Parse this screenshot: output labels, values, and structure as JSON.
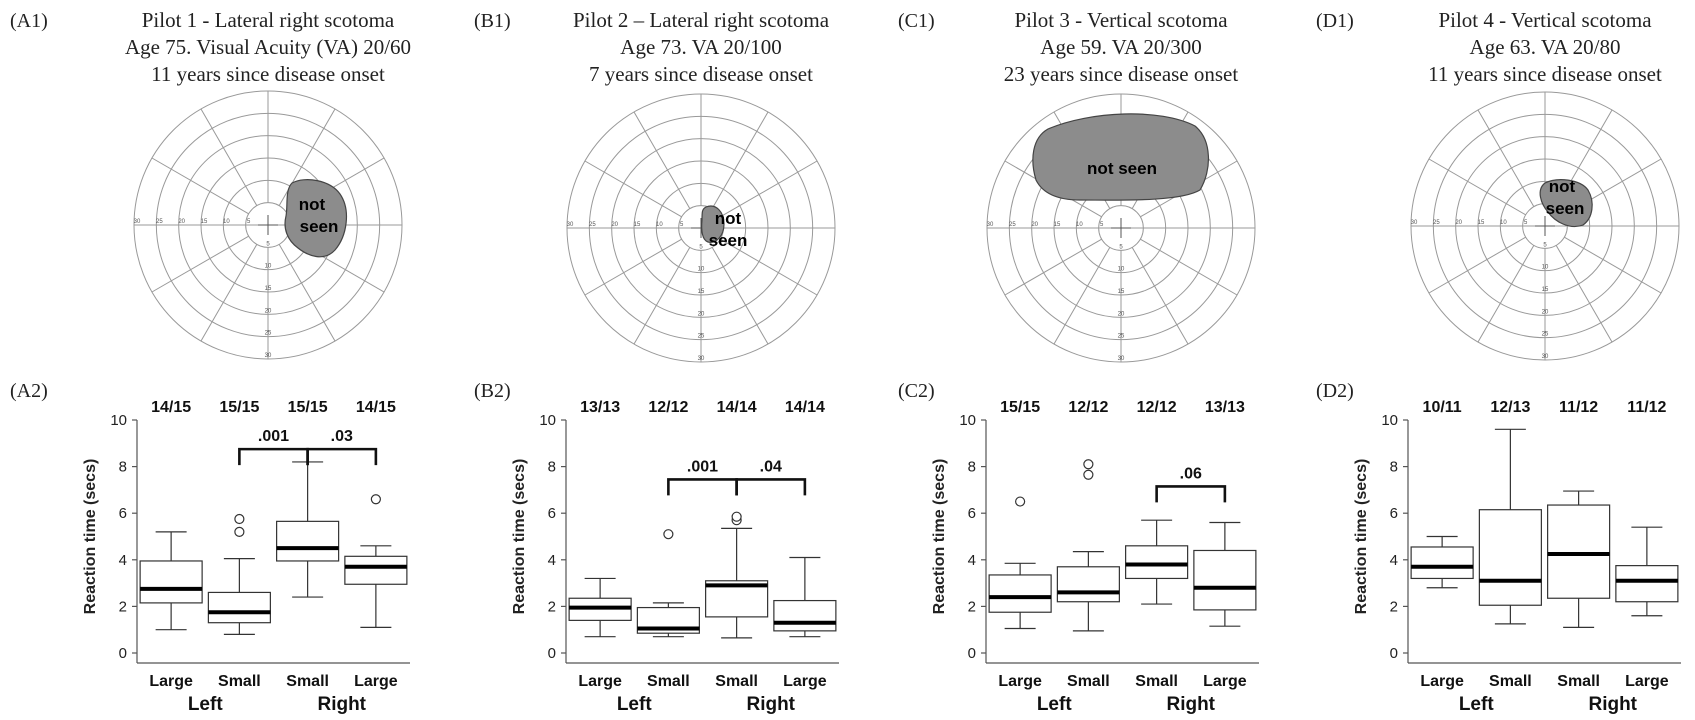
{
  "panel_labels_top": [
    "(A1)",
    "(B1)",
    "(C1)",
    "(D1)"
  ],
  "panel_labels_bottom": [
    "(A2)",
    "(B2)",
    "(C2)",
    "(D2)"
  ],
  "pilots": [
    {
      "title": "Pilot 1 - Lateral right scotoma",
      "line2": "Age 75. Visual Acuity (VA) 20/60",
      "line3": "11 years since disease onset",
      "scotoma_label": [
        "not",
        "seen"
      ]
    },
    {
      "title": "Pilot 2 – Lateral right scotoma",
      "line2": "Age 73. VA 20/100",
      "line3": "7 years since disease onset",
      "scotoma_label": [
        "not",
        "seen"
      ]
    },
    {
      "title": "Pilot 3 - Vertical scotoma",
      "line2": "Age 59. VA 20/300",
      "line3": "23 years since disease onset",
      "scotoma_label": [
        "not seen"
      ]
    },
    {
      "title": "Pilot 4 - Vertical scotoma",
      "line2": "Age 63. VA 20/80",
      "line3": "11 years since disease onset",
      "scotoma_label": [
        "not",
        "seen"
      ]
    }
  ],
  "polar_tick_labels": [
    "5",
    "10",
    "15",
    "20",
    "25",
    "30"
  ],
  "chart_data": [
    {
      "type": "box",
      "ylabel": "Reaction time (secs)",
      "ylim": [
        0,
        10
      ],
      "yticks": [
        0,
        2,
        4,
        6,
        8,
        10
      ],
      "categories": [
        "Large",
        "Small",
        "Small",
        "Large"
      ],
      "groups": [
        "Left",
        "Right"
      ],
      "counts": [
        "14/15",
        "15/15",
        "15/15",
        "14/15"
      ],
      "boxes": [
        {
          "min": 1.0,
          "q1": 2.15,
          "median": 2.75,
          "q3": 3.95,
          "max": 5.2,
          "outliers": []
        },
        {
          "min": 0.8,
          "q1": 1.3,
          "median": 1.75,
          "q3": 2.6,
          "max": 4.05,
          "outliers": [
            5.2,
            5.75
          ]
        },
        {
          "min": 2.4,
          "q1": 3.95,
          "median": 4.5,
          "q3": 5.65,
          "max": 8.2,
          "outliers": []
        },
        {
          "min": 1.1,
          "q1": 2.95,
          "median": 3.7,
          "q3": 4.15,
          "max": 4.6,
          "outliers": [
            6.6
          ]
        }
      ],
      "brackets": [
        {
          "from": 1,
          "to": 2,
          "y": 8.75,
          "label": ".001"
        },
        {
          "from": 2,
          "to": 3,
          "y": 8.75,
          "label": ".03"
        }
      ]
    },
    {
      "type": "box",
      "ylabel": "Reaction time (secs)",
      "ylim": [
        0,
        10
      ],
      "yticks": [
        0,
        2,
        4,
        6,
        8,
        10
      ],
      "categories": [
        "Large",
        "Small",
        "Small",
        "Large"
      ],
      "groups": [
        "Left",
        "Right"
      ],
      "counts": [
        "13/13",
        "12/12",
        "14/14",
        "14/14"
      ],
      "boxes": [
        {
          "min": 0.7,
          "q1": 1.4,
          "median": 1.95,
          "q3": 2.35,
          "max": 3.2,
          "outliers": []
        },
        {
          "min": 0.7,
          "q1": 0.85,
          "median": 1.05,
          "q3": 1.95,
          "max": 2.15,
          "outliers": [
            5.1
          ]
        },
        {
          "min": 0.65,
          "q1": 1.55,
          "median": 2.9,
          "q3": 3.1,
          "max": 5.35,
          "outliers": [
            5.7,
            5.85
          ]
        },
        {
          "min": 0.7,
          "q1": 0.95,
          "median": 1.3,
          "q3": 2.25,
          "max": 4.1,
          "outliers": []
        }
      ],
      "brackets": [
        {
          "from": 1,
          "to": 2,
          "y": 7.45,
          "label": ".001"
        },
        {
          "from": 2,
          "to": 3,
          "y": 7.45,
          "label": ".04"
        }
      ]
    },
    {
      "type": "box",
      "ylabel": "Reaction time (secs)",
      "ylim": [
        0,
        10
      ],
      "yticks": [
        0,
        2,
        4,
        6,
        8,
        10
      ],
      "categories": [
        "Large",
        "Small",
        "Small",
        "Large"
      ],
      "groups": [
        "Left",
        "Right"
      ],
      "counts": [
        "15/15",
        "12/12",
        "12/12",
        "13/13"
      ],
      "boxes": [
        {
          "min": 1.05,
          "q1": 1.75,
          "median": 2.4,
          "q3": 3.35,
          "max": 3.85,
          "outliers": [
            6.5
          ]
        },
        {
          "min": 0.95,
          "q1": 2.2,
          "median": 2.6,
          "q3": 3.7,
          "max": 4.35,
          "outliers": [
            7.65,
            8.1
          ]
        },
        {
          "min": 2.1,
          "q1": 3.2,
          "median": 3.8,
          "q3": 4.6,
          "max": 5.7,
          "outliers": []
        },
        {
          "min": 1.15,
          "q1": 1.85,
          "median": 2.8,
          "q3": 4.4,
          "max": 5.6,
          "outliers": []
        }
      ],
      "brackets": [
        {
          "from": 2,
          "to": 3,
          "y": 7.15,
          "label": ".06"
        }
      ]
    },
    {
      "type": "box",
      "ylabel": "Reaction time (secs)",
      "ylim": [
        0,
        10
      ],
      "yticks": [
        0,
        2,
        4,
        6,
        8,
        10
      ],
      "categories": [
        "Large",
        "Small",
        "Small",
        "Large"
      ],
      "groups": [
        "Left",
        "Right"
      ],
      "counts": [
        "10/11",
        "12/13",
        "11/12",
        "11/12"
      ],
      "boxes": [
        {
          "min": 2.8,
          "q1": 3.2,
          "median": 3.7,
          "q3": 4.55,
          "max": 5.0,
          "outliers": []
        },
        {
          "min": 1.25,
          "q1": 2.05,
          "median": 3.1,
          "q3": 6.15,
          "max": 9.6,
          "outliers": []
        },
        {
          "min": 1.1,
          "q1": 2.35,
          "median": 4.25,
          "q3": 6.35,
          "max": 6.95,
          "outliers": []
        },
        {
          "min": 1.6,
          "q1": 2.2,
          "median": 3.1,
          "q3": 3.75,
          "max": 5.4,
          "outliers": []
        }
      ],
      "brackets": []
    }
  ]
}
